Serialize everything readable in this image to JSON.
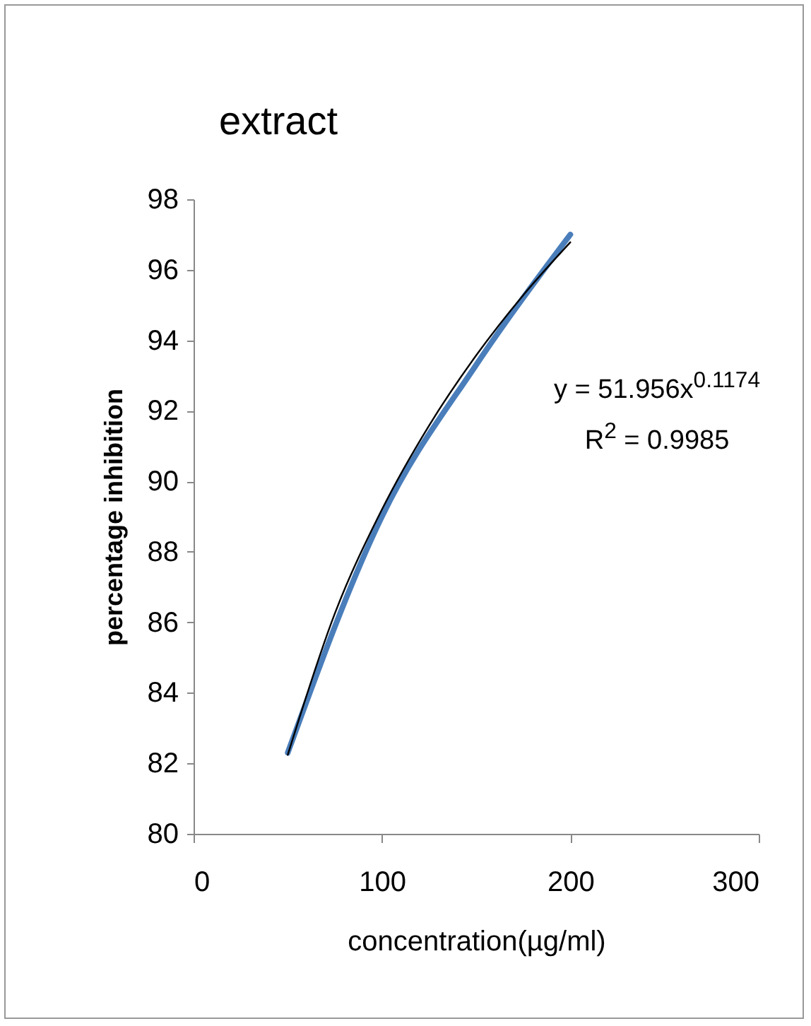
{
  "chart_data": {
    "type": "line",
    "title": "extract",
    "xlabel": "concentration(µg/ml)",
    "ylabel": "percentage inhibition",
    "x": [
      50,
      100,
      150,
      200
    ],
    "series": [
      {
        "color": "#4a7ebb",
        "values": [
          82.3,
          89.0,
          93.3,
          97.0
        ]
      },
      {
        "color": "#000000",
        "x": [
          50,
          75,
          100,
          125,
          150,
          175,
          200
        ],
        "values": [
          82.24,
          86.25,
          89.2,
          91.58,
          93.57,
          95.28,
          96.78
        ]
      }
    ],
    "xlim": [
      0,
      300
    ],
    "xticks": [
      0,
      100,
      200,
      300
    ],
    "ylim": [
      80,
      98
    ],
    "yticks": [
      80,
      82,
      84,
      86,
      88,
      90,
      92,
      94,
      96,
      98
    ],
    "grid": false,
    "marker": "none",
    "line_style": "solid",
    "annotations": [
      "y = 51.956x$^{0.1174}$",
      "R$^{2}$ = 0.9985"
    ]
  }
}
